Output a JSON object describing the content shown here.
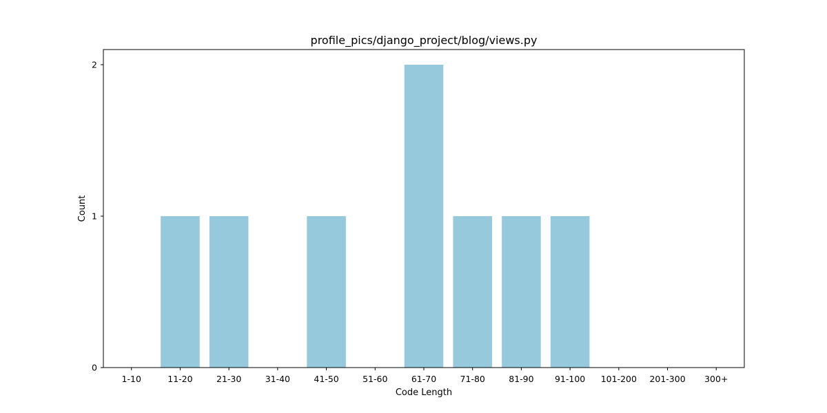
{
  "chart_data": {
    "type": "bar",
    "title": "profile_pics/django_project/blog/views.py",
    "xlabel": "Code Length",
    "ylabel": "Count",
    "categories": [
      "1-10",
      "11-20",
      "21-30",
      "31-40",
      "41-50",
      "51-60",
      "61-70",
      "71-80",
      "81-90",
      "91-100",
      "101-200",
      "201-300",
      "300+"
    ],
    "values": [
      0,
      1,
      1,
      0,
      1,
      0,
      2,
      1,
      1,
      1,
      0,
      0,
      0
    ],
    "yticks": [
      "0",
      "1",
      "2"
    ],
    "ylim": [
      0,
      2.1
    ],
    "grid": false,
    "bar_color": "#96c9dc"
  }
}
